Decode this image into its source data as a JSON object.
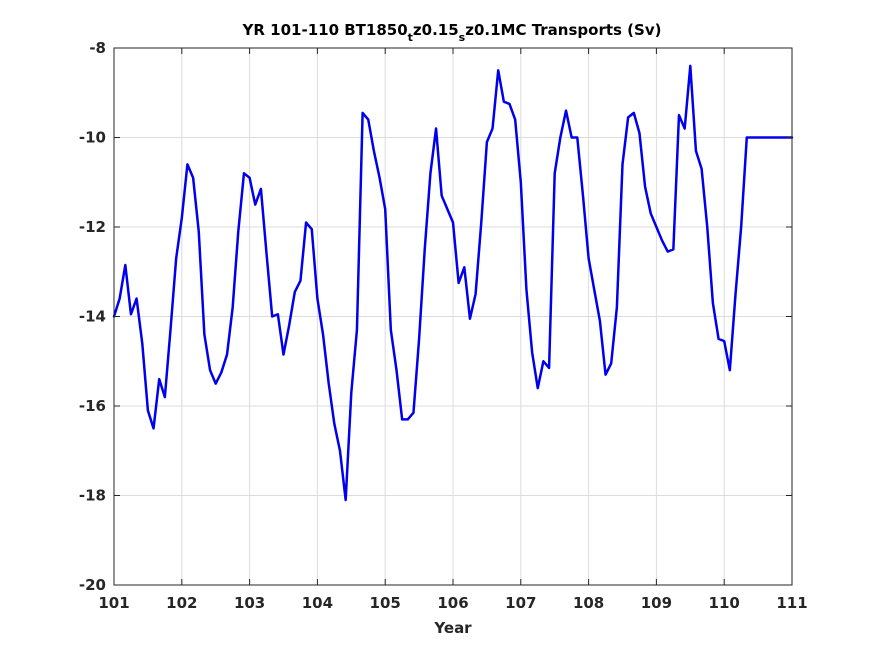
{
  "chart_data": {
    "type": "line",
    "title_parts": {
      "pre": "YR 101-110 BT1850",
      "sub1": "t",
      "mid": "z0.15",
      "sub2": "s",
      "post": "z0.1MC Transports (Sv)"
    },
    "xlabel": "Year",
    "ylabel": "",
    "xlim": [
      101,
      111
    ],
    "ylim": [
      -20,
      -8
    ],
    "xticks": [
      101,
      102,
      103,
      104,
      105,
      106,
      107,
      108,
      109,
      110,
      111
    ],
    "yticks": [
      -20,
      -18,
      -16,
      -14,
      -12,
      -10,
      -8
    ],
    "grid": true,
    "series": [
      {
        "color": "#0000ee",
        "x": [
          101.0,
          101.083,
          101.167,
          101.25,
          101.333,
          101.417,
          101.5,
          101.583,
          101.667,
          101.75,
          101.833,
          101.917,
          102.0,
          102.083,
          102.167,
          102.25,
          102.333,
          102.417,
          102.5,
          102.583,
          102.667,
          102.75,
          102.833,
          102.917,
          103.0,
          103.083,
          103.167,
          103.25,
          103.333,
          103.417,
          103.5,
          103.583,
          103.667,
          103.75,
          103.833,
          103.917,
          104.0,
          104.083,
          104.167,
          104.25,
          104.333,
          104.417,
          104.5,
          104.583,
          104.667,
          104.75,
          104.833,
          104.917,
          105.0,
          105.083,
          105.167,
          105.25,
          105.333,
          105.417,
          105.5,
          105.583,
          105.667,
          105.75,
          105.833,
          105.917,
          106.0,
          106.083,
          106.167,
          106.25,
          106.333,
          106.417,
          106.5,
          106.583,
          106.667,
          106.75,
          106.833,
          106.917,
          107.0,
          107.083,
          107.167,
          107.25,
          107.333,
          107.417,
          107.5,
          107.583,
          107.667,
          107.75,
          107.833,
          107.917,
          108.0,
          108.083,
          108.167,
          108.25,
          108.333,
          108.417,
          108.5,
          108.583,
          108.667,
          108.75,
          108.833,
          108.917,
          109.0,
          109.083,
          109.167,
          109.25,
          109.333,
          109.417,
          109.5,
          109.583,
          109.667,
          109.75,
          109.833,
          109.917,
          110.0,
          110.083,
          110.167,
          110.25,
          110.333,
          110.417,
          110.5,
          110.583,
          110.667,
          110.75,
          110.833,
          110.917,
          111.0
        ],
        "values": [
          -14.0,
          -13.6,
          -12.85,
          -13.95,
          -13.6,
          -14.6,
          -16.1,
          -16.5,
          -15.4,
          -15.8,
          -14.3,
          -12.7,
          -11.8,
          -10.6,
          -10.9,
          -12.1,
          -14.4,
          -15.2,
          -15.5,
          -15.25,
          -14.85,
          -13.8,
          -12.1,
          -10.8,
          -10.9,
          -11.5,
          -11.15,
          -12.6,
          -14.0,
          -13.95,
          -14.85,
          -14.2,
          -13.45,
          -13.2,
          -11.9,
          -12.05,
          -13.6,
          -14.4,
          -15.5,
          -16.4,
          -17.0,
          -18.1,
          -15.7,
          -14.3,
          -9.45,
          -9.6,
          -10.3,
          -10.9,
          -11.6,
          -14.3,
          -15.2,
          -16.3,
          -16.3,
          -16.15,
          -14.5,
          -12.5,
          -10.8,
          -9.8,
          -11.3,
          -11.6,
          -11.9,
          -13.25,
          -12.9,
          -14.05,
          -13.5,
          -11.9,
          -10.1,
          -9.8,
          -8.5,
          -9.2,
          -9.25,
          -9.6,
          -11.0,
          -13.4,
          -14.8,
          -15.6,
          -15.0,
          -15.15,
          -10.8,
          -10.0,
          -9.4,
          -10.0,
          -10.0,
          -11.3,
          -12.7,
          -13.4,
          -14.1,
          -15.3,
          -15.05,
          -13.8,
          -10.6,
          -9.55,
          -9.45,
          -9.9,
          -11.1,
          -11.7,
          -12.0,
          -12.3,
          -12.55,
          -12.5,
          -9.5,
          -9.8,
          -8.4,
          -10.3,
          -10.7,
          -12.0,
          -13.7,
          -14.5,
          -14.55,
          -15.2,
          -13.5,
          -12.0,
          -10.0,
          -10.0,
          -10.0,
          -10.0,
          -10.0,
          -10.0,
          -10.0,
          -10.0,
          -10.0
        ]
      }
    ]
  }
}
